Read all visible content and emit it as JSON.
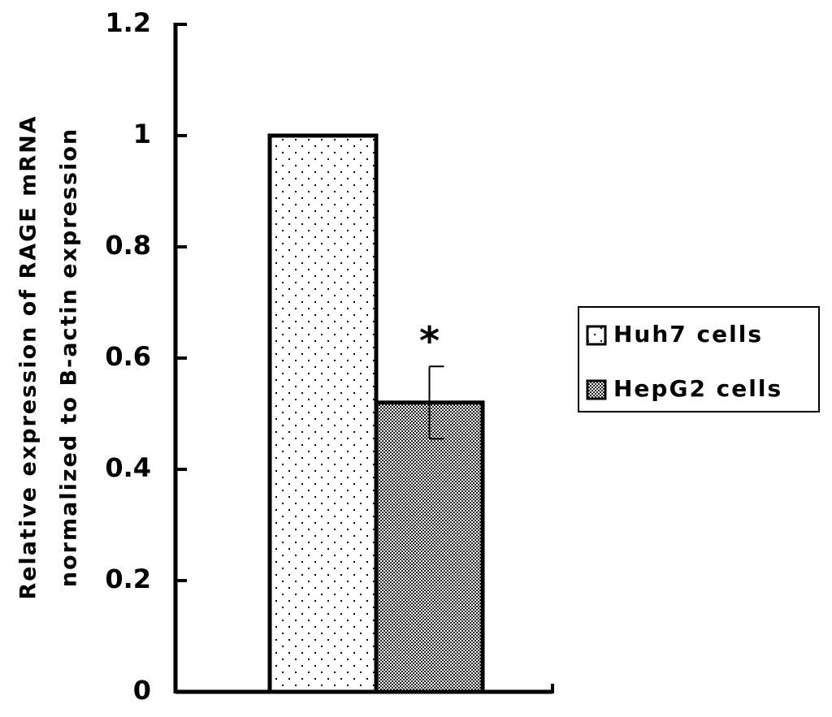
{
  "chart_data": {
    "type": "bar",
    "y_label": [
      "Relative expression of RAGE mRNA",
      "normalized to B-actin expression"
    ],
    "categories": [
      null
    ],
    "series": [
      {
        "name": "Huh7 cells",
        "color": "#ffffff",
        "pattern": "dots",
        "values": [
          1
        ]
      },
      {
        "name": "HepG2 cells",
        "color": "#ffffff",
        "pattern": "checker",
        "values": [
          0.52
        ],
        "errors": [
          0.065
        ]
      }
    ],
    "annotation": "*",
    "ylim": [
      0,
      1.2
    ],
    "yticks": [
      0,
      0.2,
      0.4,
      0.6,
      0.8,
      1,
      1.2
    ],
    "legend": "right"
  }
}
